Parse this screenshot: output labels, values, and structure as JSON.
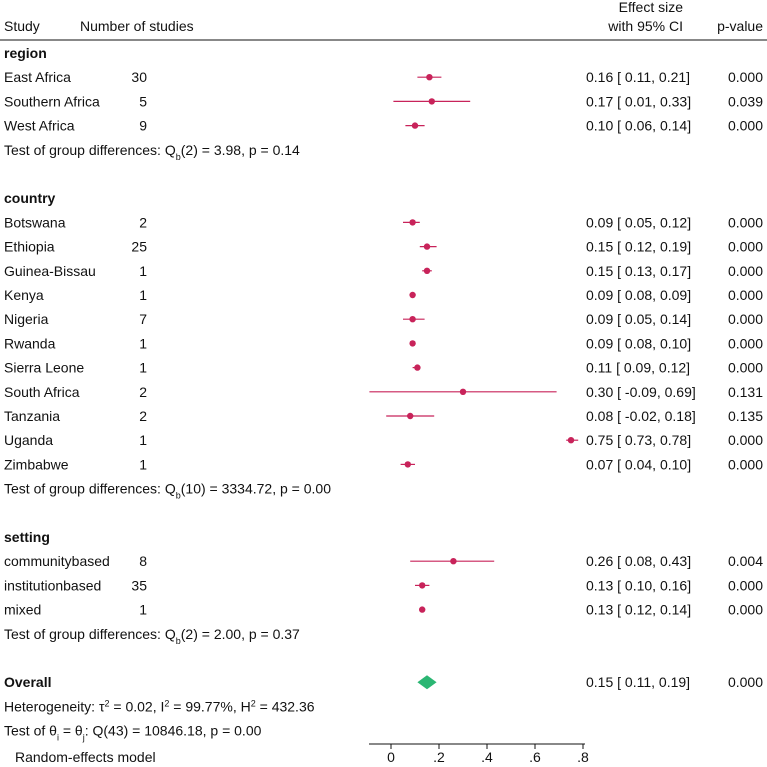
{
  "chart_data": {
    "type": "forest",
    "title": "",
    "headers": {
      "study": "Study",
      "n": "Number of studies",
      "effect_line1": "Effect size",
      "effect_line2": "with 95% CI",
      "pvalue": "p-value"
    },
    "axis": {
      "xlim": [
        -0.08,
        0.8
      ],
      "ticks": [
        0,
        0.2,
        0.4,
        0.6,
        0.8
      ],
      "tick_labels": [
        "0",
        ".2",
        ".4",
        ".6",
        ".8"
      ],
      "label": "Random-effects model"
    },
    "colors": {
      "marker": "#c8235a",
      "overall": "#2bb673"
    },
    "groups": [
      {
        "name": "region",
        "studies": [
          {
            "label": "East Africa",
            "n": "30",
            "es": 0.16,
            "lo": 0.11,
            "hi": 0.21,
            "ci_text": "0.16 [  0.11, 0.21]",
            "p": "0.000"
          },
          {
            "label": "Southern Africa",
            "n": "5",
            "es": 0.17,
            "lo": 0.01,
            "hi": 0.33,
            "ci_text": "0.17 [  0.01, 0.33]",
            "p": "0.039"
          },
          {
            "label": "West Africa",
            "n": "9",
            "es": 0.1,
            "lo": 0.06,
            "hi": 0.14,
            "ci_text": "0.10 [  0.06, 0.14]",
            "p": "0.000"
          }
        ],
        "test": {
          "prefix": "Test of group differences: Q",
          "sub": "b",
          "rest": "(2) = 3.98, p = 0.14"
        }
      },
      {
        "name": "country",
        "studies": [
          {
            "label": "Botswana",
            "n": "2",
            "es": 0.09,
            "lo": 0.05,
            "hi": 0.12,
            "ci_text": "0.09 [  0.05, 0.12]",
            "p": "0.000"
          },
          {
            "label": "Ethiopia",
            "n": "25",
            "es": 0.15,
            "lo": 0.12,
            "hi": 0.19,
            "ci_text": "0.15 [  0.12, 0.19]",
            "p": "0.000"
          },
          {
            "label": "Guinea-Bissau",
            "n": "1",
            "es": 0.15,
            "lo": 0.13,
            "hi": 0.17,
            "ci_text": "0.15 [  0.13, 0.17]",
            "p": "0.000"
          },
          {
            "label": "Kenya",
            "n": "1",
            "es": 0.09,
            "lo": 0.08,
            "hi": 0.09,
            "ci_text": "0.09 [  0.08, 0.09]",
            "p": "0.000"
          },
          {
            "label": "Nigeria",
            "n": "7",
            "es": 0.09,
            "lo": 0.05,
            "hi": 0.14,
            "ci_text": "0.09 [  0.05, 0.14]",
            "p": "0.000"
          },
          {
            "label": "Rwanda",
            "n": "1",
            "es": 0.09,
            "lo": 0.08,
            "hi": 0.1,
            "ci_text": "0.09 [  0.08, 0.10]",
            "p": "0.000"
          },
          {
            "label": "Sierra Leone",
            "n": "1",
            "es": 0.11,
            "lo": 0.09,
            "hi": 0.12,
            "ci_text": "0.11 [  0.09, 0.12]",
            "p": "0.000"
          },
          {
            "label": "South Africa",
            "n": "2",
            "es": 0.3,
            "lo": -0.09,
            "hi": 0.69,
            "ci_text": "0.30 [ -0.09, 0.69]",
            "p": "0.131"
          },
          {
            "label": "Tanzania",
            "n": "2",
            "es": 0.08,
            "lo": -0.02,
            "hi": 0.18,
            "ci_text": "0.08 [ -0.02, 0.18]",
            "p": "0.135"
          },
          {
            "label": "Uganda",
            "n": "1",
            "es": 0.75,
            "lo": 0.73,
            "hi": 0.78,
            "ci_text": "0.75 [  0.73, 0.78]",
            "p": "0.000"
          },
          {
            "label": "Zimbabwe",
            "n": "1",
            "es": 0.07,
            "lo": 0.04,
            "hi": 0.1,
            "ci_text": "0.07 [  0.04, 0.10]",
            "p": "0.000"
          }
        ],
        "test": {
          "prefix": "Test of group differences: Q",
          "sub": "b",
          "rest": "(10) = 3334.72, p = 0.00"
        }
      },
      {
        "name": "setting",
        "studies": [
          {
            "label": "communitybased",
            "n": "8",
            "es": 0.26,
            "lo": 0.08,
            "hi": 0.43,
            "ci_text": "0.26 [  0.08, 0.43]",
            "p": "0.004"
          },
          {
            "label": "institutionbased",
            "n": "35",
            "es": 0.13,
            "lo": 0.1,
            "hi": 0.16,
            "ci_text": "0.13 [  0.10, 0.16]",
            "p": "0.000"
          },
          {
            "label": "mixed",
            "n": "1",
            "es": 0.13,
            "lo": 0.12,
            "hi": 0.14,
            "ci_text": "0.13 [  0.12, 0.14]",
            "p": "0.000"
          }
        ],
        "test": {
          "prefix": "Test of group differences: Q",
          "sub": "b",
          "rest": "(2) = 2.00, p = 0.37"
        }
      }
    ],
    "overall": {
      "label": "Overall",
      "es": 0.15,
      "lo": 0.11,
      "hi": 0.19,
      "ci_text": "0.15 [  0.11, 0.19]",
      "p": "0.000",
      "heterogeneity": {
        "prefix": "Heterogeneity: ",
        "tau": "τ",
        "tau_rest": " = 0.02, I",
        "i2_rest": " = 99.77%, H",
        "h2_rest": " = 432.36",
        "sq": "2"
      },
      "test": {
        "prefix": "Test of ",
        "theta": "θ",
        "sub_i": "i",
        "eq": " = ",
        "sub_j": "j",
        "rest": ": Q(43) = 10846.18, p = 0.00"
      }
    }
  }
}
